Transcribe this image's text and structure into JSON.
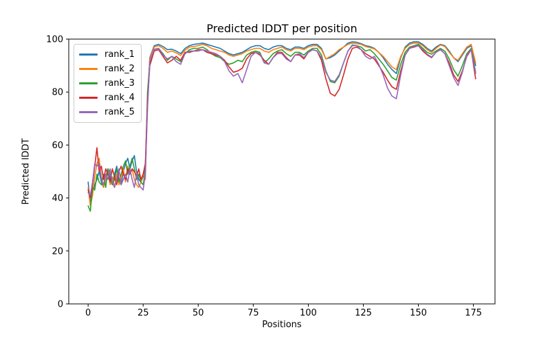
{
  "title": "Predicted lDDT per position",
  "chart_data": {
    "type": "line",
    "title": "Predicted lDDT per position",
    "xlabel": "Positions",
    "ylabel": "Predicted lDDT",
    "xlim": [
      -8.8,
      184.8
    ],
    "ylim": [
      0,
      100
    ],
    "x_ticks": [
      0,
      25,
      50,
      75,
      100,
      125,
      150,
      175
    ],
    "y_ticks": [
      0,
      20,
      40,
      60,
      80,
      100
    ],
    "grid": false,
    "legend_position": "upper left",
    "x": [
      0,
      1,
      2,
      3,
      4,
      5,
      6,
      7,
      8,
      9,
      10,
      11,
      12,
      13,
      14,
      15,
      16,
      17,
      18,
      19,
      20,
      21,
      22,
      23,
      24,
      25,
      26,
      27,
      28,
      30,
      32,
      34,
      36,
      38,
      40,
      42,
      44,
      46,
      48,
      50,
      52,
      54,
      56,
      58,
      60,
      62,
      64,
      66,
      68,
      70,
      72,
      74,
      76,
      78,
      80,
      82,
      84,
      86,
      88,
      90,
      92,
      94,
      96,
      98,
      100,
      102,
      104,
      106,
      108,
      110,
      112,
      114,
      116,
      118,
      120,
      122,
      124,
      126,
      128,
      130,
      132,
      134,
      136,
      138,
      140,
      142,
      144,
      146,
      148,
      150,
      152,
      154,
      156,
      158,
      160,
      162,
      164,
      166,
      168,
      170,
      172,
      174,
      176
    ],
    "series": [
      {
        "name": "rank_1",
        "color": "#1f77b4",
        "values": [
          46,
          38,
          42,
          45,
          47,
          50,
          46,
          44,
          48,
          51,
          47,
          45,
          49,
          52,
          47,
          45,
          50,
          53,
          55,
          51,
          54,
          56,
          50,
          47,
          46,
          48,
          52,
          75,
          93,
          97.5,
          98,
          97.2,
          96,
          96.2,
          95.5,
          94.5,
          96.5,
          97.5,
          98,
          98.2,
          98.5,
          98,
          97.5,
          97,
          96.5,
          95.5,
          94.5,
          94,
          94.5,
          95,
          96,
          97,
          97.5,
          97.5,
          96.5,
          96,
          97,
          97.5,
          97.5,
          96.5,
          96,
          97,
          97,
          96.5,
          97.5,
          98,
          98,
          96.5,
          92.5,
          93,
          94,
          95.5,
          97,
          98.5,
          99,
          98.8,
          98.3,
          97.5,
          97.2,
          96.5,
          95,
          93,
          90.5,
          88.5,
          87,
          93,
          97,
          98.5,
          99,
          99,
          98,
          96.5,
          95.5,
          97,
          98,
          97.5,
          95.5,
          93,
          91.5,
          94,
          96.5,
          97.5,
          90
        ]
      },
      {
        "name": "rank_2",
        "color": "#ff7f0e",
        "values": [
          44,
          37,
          41,
          48,
          53,
          55,
          48,
          44,
          47,
          50,
          45,
          48,
          44,
          49,
          45,
          47,
          51,
          46,
          52,
          49,
          51,
          47,
          45,
          44,
          46,
          49,
          47,
          78,
          92.5,
          97,
          97.5,
          96.5,
          95,
          95.5,
          94.8,
          93.8,
          95.8,
          97,
          97.2,
          97.5,
          98,
          97.5,
          96.5,
          96,
          95.5,
          95,
          94,
          93.5,
          94,
          94.5,
          95.5,
          96,
          96.5,
          96.5,
          95.5,
          95,
          96,
          96.5,
          97,
          96,
          95.5,
          96.5,
          96.5,
          96,
          97,
          97.5,
          97.5,
          96,
          92.5,
          93.5,
          94.5,
          96,
          97,
          98,
          98.5,
          98.3,
          98,
          97.2,
          96.8,
          96.3,
          95,
          93.5,
          91.5,
          89.5,
          88.5,
          93.5,
          96.5,
          98,
          98.5,
          98.5,
          97.5,
          96,
          95,
          96.5,
          97.8,
          97.2,
          95,
          93,
          92,
          94.5,
          97,
          98,
          91
        ]
      },
      {
        "name": "rank_3",
        "color": "#2ca02c",
        "values": [
          37,
          35,
          44,
          43,
          49,
          46,
          45,
          49,
          44,
          51,
          49,
          45,
          47,
          51,
          46,
          49,
          52,
          54,
          49,
          52,
          55,
          51,
          47,
          49,
          46,
          45,
          50,
          80,
          91,
          96,
          96.5,
          94.5,
          92,
          93.5,
          92.5,
          91.5,
          94.5,
          96,
          96.5,
          96.5,
          97,
          96,
          94.5,
          93.5,
          93,
          91.5,
          90.5,
          91,
          92,
          91.5,
          94,
          95,
          95.5,
          95,
          91,
          92.5,
          94.5,
          95.5,
          96,
          94.5,
          93.5,
          95,
          95,
          94,
          95.5,
          96.5,
          96.5,
          94,
          88,
          84,
          83.5,
          86,
          91,
          95.5,
          97.8,
          97.5,
          97,
          95.5,
          96,
          94.5,
          92.5,
          90.5,
          88,
          85.5,
          84.5,
          90.5,
          95,
          97,
          97.5,
          98,
          96.5,
          95,
          94.3,
          95.5,
          96.5,
          95.5,
          92.5,
          88.5,
          86,
          90,
          94.5,
          96.5,
          87.5
        ]
      },
      {
        "name": "rank_4",
        "color": "#d62728",
        "values": [
          43,
          40,
          45,
          52,
          59,
          50,
          52,
          47,
          51,
          49,
          46,
          51,
          48,
          45,
          50,
          52,
          49,
          47,
          51,
          49,
          51,
          50,
          48,
          51,
          47,
          49,
          53,
          77,
          90,
          95.5,
          96,
          93.5,
          91,
          92,
          93.5,
          92,
          95,
          95,
          95.5,
          96,
          96,
          95,
          94.5,
          94,
          93.5,
          92,
          89.5,
          87.5,
          88,
          89,
          92.5,
          94.5,
          95,
          94,
          92,
          90.5,
          93,
          95,
          95,
          93,
          91.5,
          94,
          94,
          92.5,
          95,
          96,
          95.5,
          92,
          85,
          79.5,
          78.5,
          81,
          86.5,
          92.5,
          96.5,
          97,
          96,
          94.5,
          93.5,
          92.5,
          90,
          87.5,
          84.5,
          82,
          81,
          88,
          94,
          96.5,
          97,
          97.5,
          95.5,
          94,
          93,
          95,
          96,
          94.5,
          91,
          86.5,
          84,
          88,
          93.5,
          96,
          85
        ]
      },
      {
        "name": "rank_5",
        "color": "#9467bd",
        "values": [
          42,
          41,
          46,
          53,
          52,
          53,
          47,
          45,
          49,
          47,
          51,
          46,
          44,
          47,
          51,
          45,
          47,
          49,
          46,
          51,
          47,
          44,
          49,
          45,
          44,
          43,
          49,
          74,
          91.5,
          96.2,
          96.5,
          94,
          92.5,
          93.5,
          91.5,
          90.5,
          94.5,
          95.5,
          95.5,
          95.5,
          96,
          95.5,
          95,
          94.5,
          93.5,
          91.5,
          88,
          86,
          87,
          83.5,
          88.5,
          93.5,
          95,
          94.5,
          91,
          90.5,
          93,
          94.5,
          94.5,
          92.5,
          91.5,
          94,
          94.5,
          93,
          95,
          96,
          95.5,
          93,
          87.5,
          84.5,
          84,
          86.5,
          91,
          95.5,
          97.5,
          97.5,
          96,
          93.5,
          92.5,
          93.5,
          90.5,
          86.5,
          81.5,
          78.5,
          77.5,
          86.5,
          94,
          96.5,
          97.3,
          97.5,
          96,
          94.3,
          93.2,
          95,
          96.2,
          94.5,
          90,
          85.5,
          82.5,
          87.5,
          94,
          96,
          87
        ]
      }
    ]
  }
}
